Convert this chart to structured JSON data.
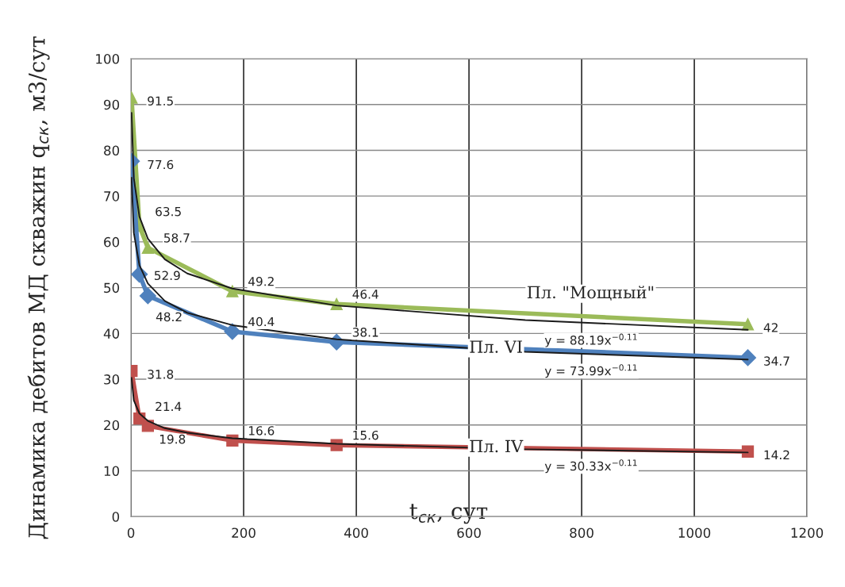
{
  "chart_data": {
    "type": "line",
    "xlabel": "t$_{ск}$, сут",
    "ylabel": "Динамика дебитов МД скважин q$_{ск}$, м3/сут",
    "xlim": [
      0,
      1200
    ],
    "xticks": [
      0,
      200,
      400,
      600,
      800,
      1000,
      1200
    ],
    "ylim": [
      0,
      100
    ],
    "yticks": [
      0,
      10,
      20,
      30,
      40,
      50,
      60,
      70,
      80,
      90,
      100
    ],
    "grid": true,
    "legend": false,
    "series": [
      {
        "name": "Пл. \"Мощный\"",
        "color": "#9bbb59",
        "marker": "triangle",
        "x": [
          1,
          15,
          30,
          180,
          365,
          1095
        ],
        "values": [
          91.5,
          63.5,
          58.7,
          49.2,
          46.4,
          42
        ],
        "value_labels": [
          "91.5",
          "63.5",
          "58.7",
          "49.2",
          "46.4",
          "42"
        ]
      },
      {
        "name": "Пл. VI",
        "color": "#4f81bd",
        "marker": "diamond",
        "x": [
          1,
          15,
          30,
          180,
          365,
          1095
        ],
        "values": [
          77.6,
          52.9,
          48.2,
          40.4,
          38.1,
          34.7
        ],
        "value_labels": [
          "77.6",
          "52.9",
          "48.2",
          "40.4",
          "38.1",
          "34.7"
        ]
      },
      {
        "name": "Пл. IV",
        "color": "#c0504d",
        "marker": "square",
        "x": [
          1,
          15,
          30,
          180,
          365,
          1095
        ],
        "values": [
          31.8,
          21.4,
          19.8,
          16.6,
          15.6,
          14.2
        ],
        "value_labels": [
          "31.8",
          "21.4",
          "19.8",
          "16.6",
          "15.6",
          "14.2"
        ]
      },
      {
        "type": "line",
        "color": "#1a1a1a",
        "marker": "none",
        "x": [
          1,
          5,
          15,
          30,
          60,
          100,
          180,
          365,
          700,
          1095
        ],
        "values": [
          88.2,
          73.9,
          65.5,
          60.7,
          56.2,
          53.1,
          49.8,
          46.1,
          42.9,
          40.8
        ]
      },
      {
        "type": "line",
        "color": "#1a1a1a",
        "marker": "none",
        "x": [
          1,
          5,
          15,
          30,
          60,
          100,
          180,
          365,
          700,
          1095
        ],
        "values": [
          74.0,
          62.0,
          54.9,
          50.9,
          47.1,
          44.5,
          41.8,
          38.7,
          36.0,
          34.3
        ]
      },
      {
        "type": "line",
        "color": "#1a1a1a",
        "marker": "none",
        "x": [
          1,
          5,
          15,
          30,
          60,
          100,
          180,
          365,
          700,
          1095
        ],
        "values": [
          30.3,
          25.4,
          22.5,
          20.9,
          19.3,
          18.3,
          17.1,
          15.9,
          14.7,
          14.0
        ]
      }
    ],
    "annotations": [
      "y = 88.19x$^{−0.11}$",
      "y = 73.99x$^{−0.11}$",
      "y = 30.33x$^{−0.11}$"
    ]
  }
}
